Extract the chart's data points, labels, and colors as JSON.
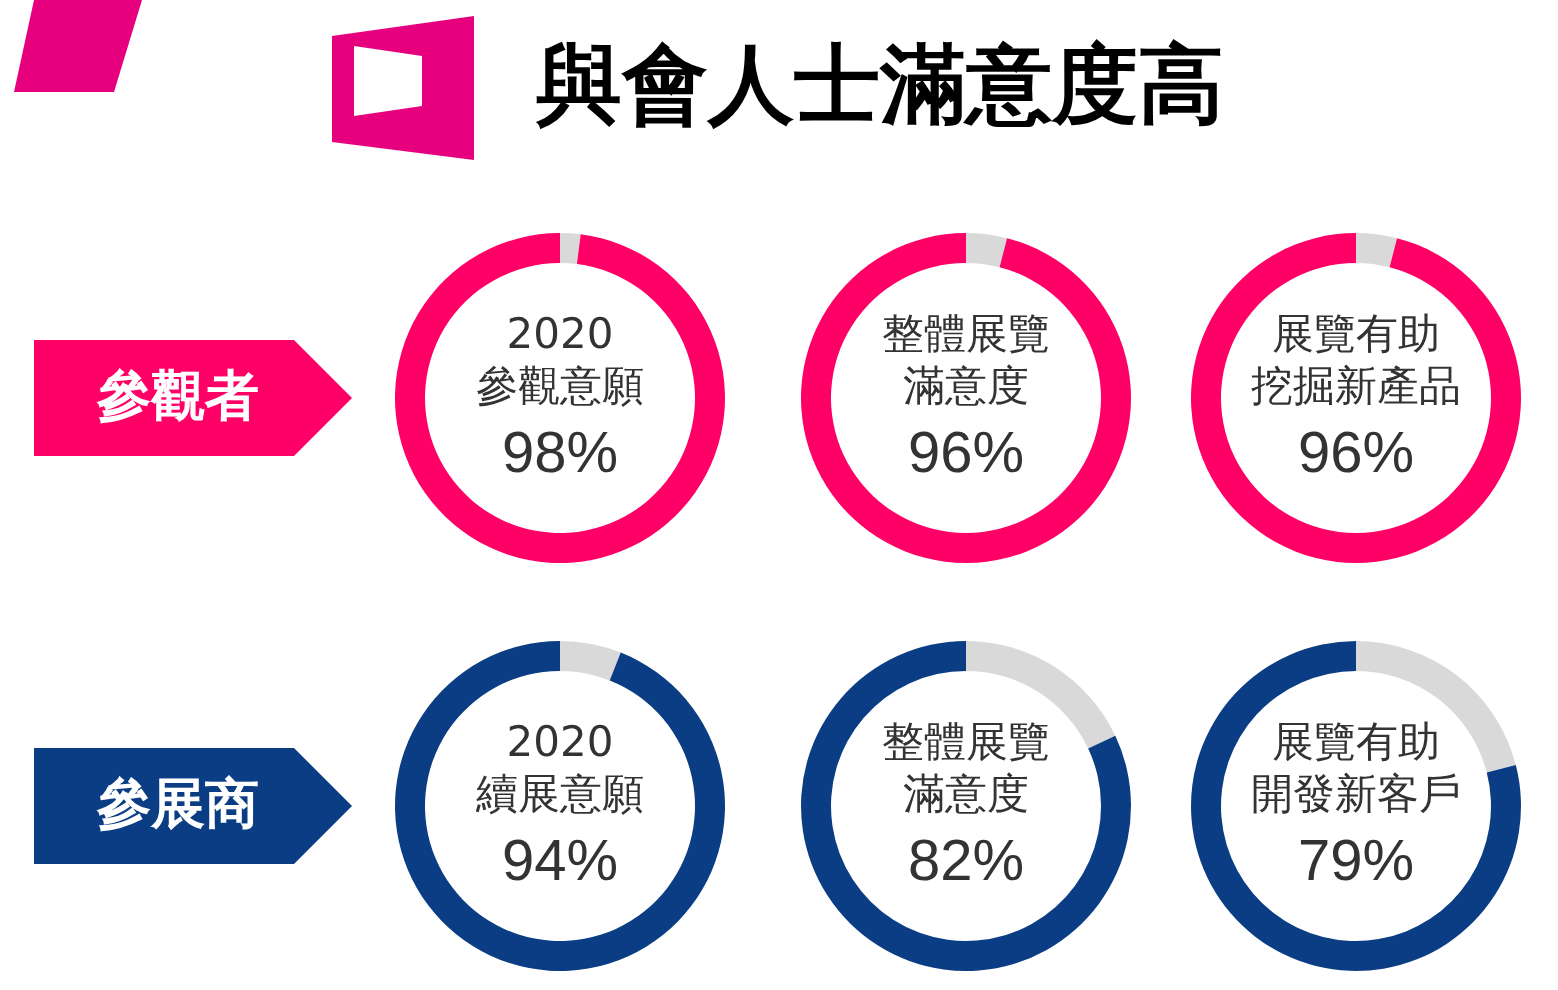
{
  "chart_data": [
    {
      "type": "other",
      "title": "與會人士滿意度高",
      "annotations": [
        "參觀者",
        "參展商"
      ]
    },
    {
      "type": "donut",
      "categories": [
        null,
        "2020 參觀意願"
      ],
      "values": [
        2,
        98
      ],
      "colors": [
        "#d9d9d9",
        "#ff0066"
      ],
      "value_labels": [
        null,
        "98%"
      ]
    },
    {
      "type": "donut",
      "categories": [
        null,
        "整體展覽滿意度"
      ],
      "values": [
        4,
        96
      ],
      "colors": [
        "#d9d9d9",
        "#ff0066"
      ],
      "value_labels": [
        null,
        "96%"
      ]
    },
    {
      "type": "donut",
      "categories": [
        null,
        "展覽有助挖掘新產品"
      ],
      "values": [
        4,
        96
      ],
      "colors": [
        "#d9d9d9",
        "#ff0066"
      ],
      "value_labels": [
        null,
        "96%"
      ]
    },
    {
      "type": "donut",
      "categories": [
        null,
        "2020 續展意願"
      ],
      "values": [
        6,
        94
      ],
      "colors": [
        "#d9d9d9",
        "#0b3d84"
      ],
      "value_labels": [
        null,
        "94%"
      ]
    },
    {
      "type": "donut",
      "categories": [
        null,
        "整體展覽滿意度"
      ],
      "values": [
        18,
        82
      ],
      "colors": [
        "#d9d9d9",
        "#0b3d84"
      ],
      "value_labels": [
        null,
        "82%"
      ]
    },
    {
      "type": "donut",
      "categories": [
        null,
        "展覽有助開發新客戶"
      ],
      "values": [
        21,
        79
      ],
      "colors": [
        "#d9d9d9",
        "#0b3d84"
      ],
      "value_labels": [
        null,
        "79%"
      ]
    }
  ]
}
